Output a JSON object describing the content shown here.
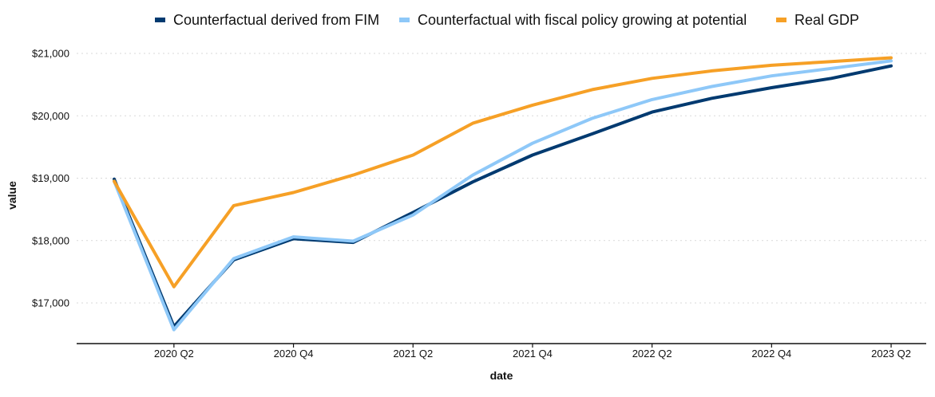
{
  "chart_data": {
    "type": "line",
    "xlabel": "date",
    "ylabel": "value",
    "x": [
      "2020 Q1",
      "2020 Q2",
      "2020 Q3",
      "2020 Q4",
      "2021 Q1",
      "2021 Q2",
      "2021 Q3",
      "2021 Q4",
      "2022 Q1",
      "2022 Q2",
      "2022 Q3",
      "2022 Q4",
      "2023 Q1",
      "2023 Q2"
    ],
    "x_tick_labels": [
      "2020 Q2",
      "2020 Q4",
      "2021 Q2",
      "2021 Q4",
      "2022 Q2",
      "2022 Q4",
      "2023 Q2"
    ],
    "ylim": [
      16450,
      21150
    ],
    "y_ticks": [
      17000,
      18000,
      19000,
      20000,
      21000
    ],
    "y_tick_labels": [
      "$17,000",
      "$18,000",
      "$19,000",
      "$20,000",
      "$21,000"
    ],
    "grid": "horizontal-dotted",
    "legend_position": "top",
    "series": [
      {
        "name": "Counterfactual derived from FIM",
        "color": "#003a70",
        "values": [
          18985,
          16620,
          17690,
          18030,
          17970,
          18450,
          18940,
          19370,
          19710,
          20060,
          20280,
          20450,
          20600,
          20800
        ]
      },
      {
        "name": "Counterfactual with fiscal policy growing at potential",
        "color": "#8ec8f8",
        "values": [
          18950,
          16570,
          17710,
          18060,
          17990,
          18410,
          19050,
          19560,
          19960,
          20260,
          20470,
          20640,
          20760,
          20880
        ]
      },
      {
        "name": "Real GDP",
        "color": "#f6a026",
        "values": [
          18950,
          17260,
          18560,
          18770,
          19050,
          19370,
          19880,
          20170,
          20420,
          20600,
          20720,
          20810,
          20870,
          20930
        ]
      }
    ]
  }
}
